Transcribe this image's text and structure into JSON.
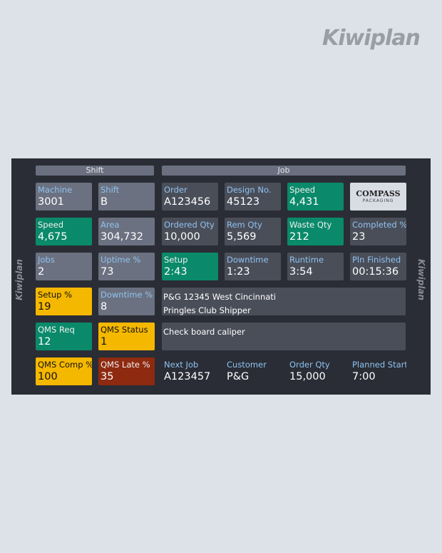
{
  "brand": "Kiwiplan",
  "sections": {
    "shift": "Shift",
    "job": "Job"
  },
  "logo": {
    "name": "COMPASS",
    "sub": "PACKAGING"
  },
  "rows": [
    [
      {
        "label": "Machine",
        "value": "3001",
        "color": "#6b7180"
      },
      {
        "label": "Shift",
        "value": "B",
        "color": "#6b7180"
      },
      {
        "label": "Order",
        "value": "A123456",
        "color": "#4a4e59"
      },
      {
        "label": "Design No.",
        "value": "45123",
        "color": "#4a4e59"
      },
      {
        "label": "Speed",
        "value": "4,431",
        "color": "#0a8a6a"
      }
    ],
    [
      {
        "label": "Speed",
        "value": "4,675",
        "color": "#0a8a6a"
      },
      {
        "label": "Area",
        "value": "304,732",
        "color": "#6b7180"
      },
      {
        "label": "Ordered Qty",
        "value": "10,000",
        "color": "#4a4e59"
      },
      {
        "label": "Rem Qty",
        "value": "5,569",
        "color": "#4a4e59"
      },
      {
        "label": "Waste Qty",
        "value": "212",
        "color": "#0a8a6a"
      },
      {
        "label": "Completed %",
        "value": "23",
        "color": "#4a4e59"
      }
    ],
    [
      {
        "label": "Jobs",
        "value": "2",
        "color": "#6b7180"
      },
      {
        "label": "Uptime %",
        "value": "73",
        "color": "#6b7180"
      },
      {
        "label": "Setup",
        "value": "2:43",
        "color": "#0a8a6a"
      },
      {
        "label": "Downtime",
        "value": "1:23",
        "color": "#4a4e59"
      },
      {
        "label": "Runtime",
        "value": "3:54",
        "color": "#4a4e59"
      },
      {
        "label": "Pln Finished",
        "value": "00:15:36",
        "color": "#4a4e59"
      }
    ],
    [
      {
        "label": "Setup %",
        "value": "19",
        "color": "#f5b800"
      },
      {
        "label": "Downtime %",
        "value": "8",
        "color": "#6b7180"
      },
      {
        "lines": [
          "P&G 12345 West Cincinnati",
          "Pringles Club Shipper"
        ],
        "color": "#4a4e59"
      }
    ],
    [
      {
        "label": "QMS Req",
        "value": "12",
        "color": "#0a8a6a"
      },
      {
        "label": "QMS Status",
        "value": "1",
        "color": "#f5b800"
      },
      {
        "lines": [
          "Check board caliper"
        ],
        "color": "#4a4e59"
      }
    ],
    [
      {
        "label": "QMS Comp %",
        "value": "100",
        "color": "#f5b800"
      },
      {
        "label": "QMS Late %",
        "value": "35",
        "color": "#8e2a10"
      },
      {
        "label": "Next Job",
        "value": "A123457"
      },
      {
        "label": "Customer",
        "value": "P&G"
      },
      {
        "label": "Order Qty",
        "value": "15,000"
      },
      {
        "label": "Planned Start",
        "value": "7:00"
      }
    ]
  ]
}
